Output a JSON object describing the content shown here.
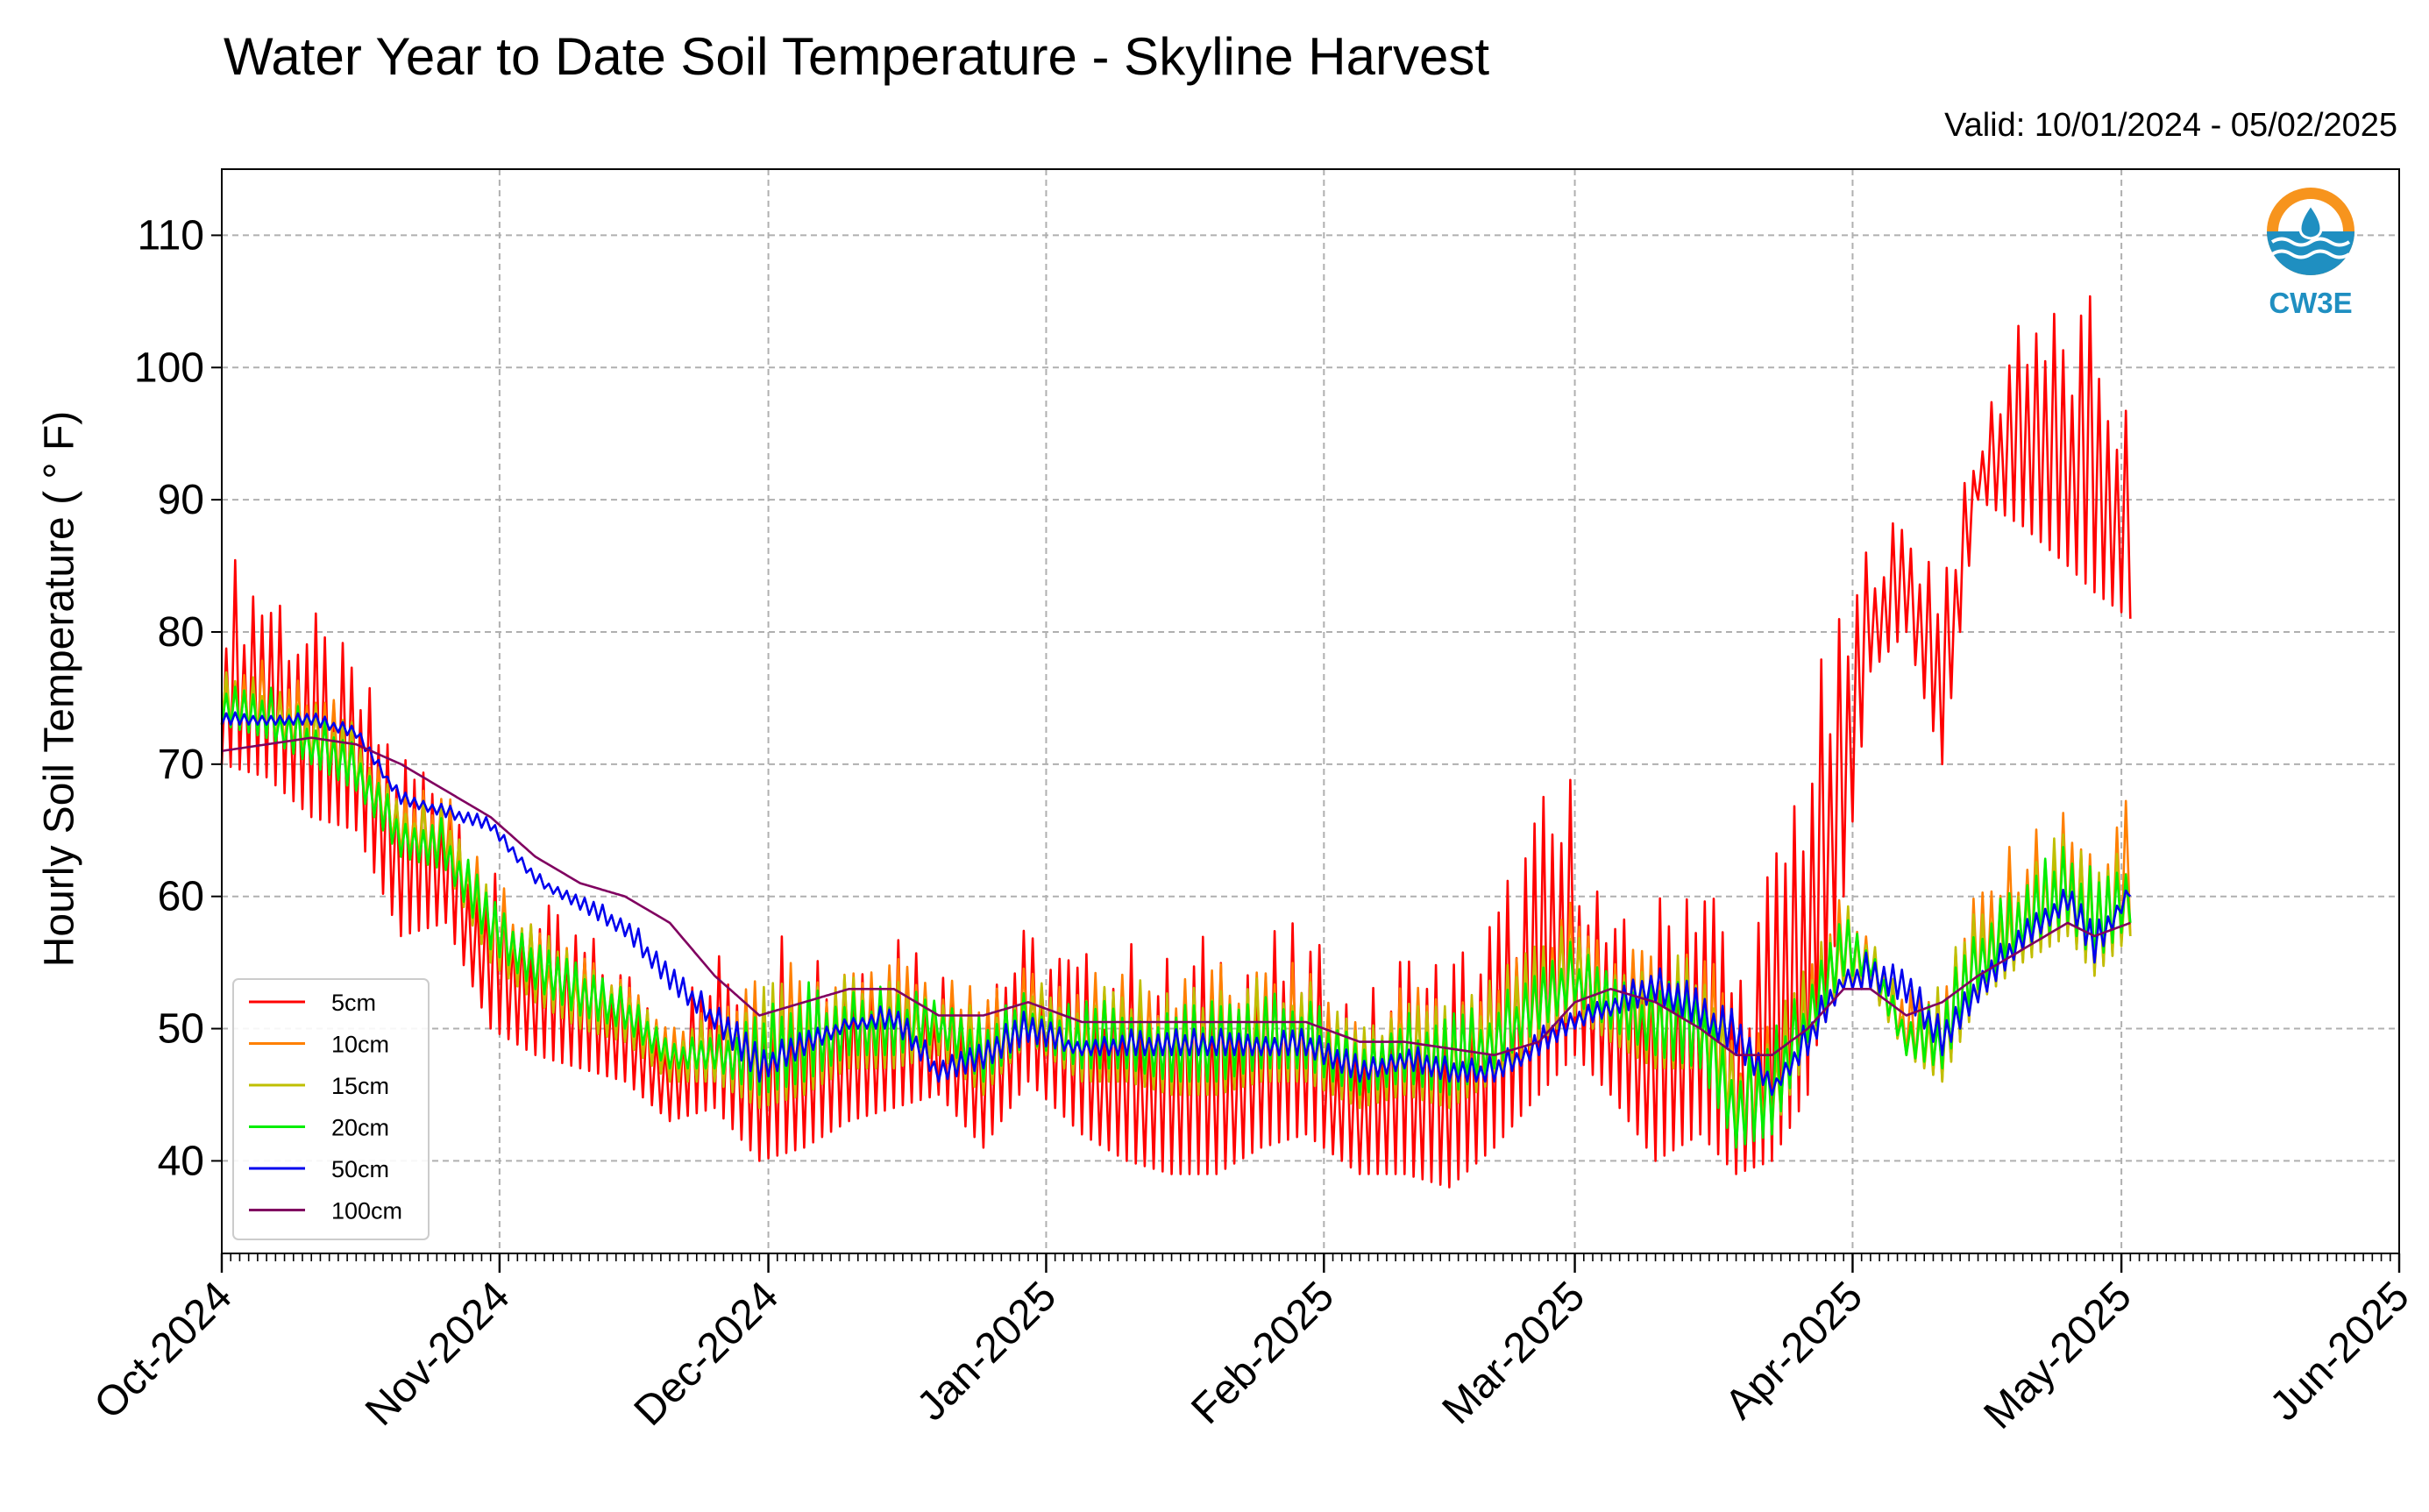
{
  "title": "Water Year to Date Soil Temperature - Skyline Harvest",
  "valid_text": "Valid: 10/01/2024 - 05/02/2025",
  "logo_text": "CW3E",
  "colors": {
    "5cm": "#ff0000",
    "10cm": "#ff8000",
    "15cm": "#bfbf00",
    "20cm": "#00ee00",
    "50cm": "#0000ee",
    "100cm": "#800060",
    "logo_orange": "#f7941d",
    "logo_blue": "#1f8fc1"
  },
  "chart_data": {
    "type": "line",
    "title": "Water Year to Date Soil Temperature - Skyline Harvest",
    "xlabel": "",
    "ylabel": "Hourly Soil Temperature ( ° F)",
    "ylim": [
      33,
      115
    ],
    "xlim": [
      "2024-10-01",
      "2025-06-01"
    ],
    "yticks": [
      40,
      50,
      60,
      70,
      80,
      90,
      100,
      110
    ],
    "xticks": [
      "Oct-2024",
      "Nov-2024",
      "Dec-2024",
      "Jan-2025",
      "Feb-2025",
      "Mar-2025",
      "Apr-2025",
      "May-2025",
      "Jun-2025"
    ],
    "grid": true,
    "legend_position": "lower-left",
    "series": [
      {
        "name": "5cm",
        "x": [
          "2024-10-01",
          "2024-10-06",
          "2024-10-11",
          "2024-10-16",
          "2024-10-21",
          "2024-10-26",
          "2024-10-31",
          "2024-11-05",
          "2024-11-10",
          "2024-11-15",
          "2024-11-20",
          "2024-11-25",
          "2024-11-30",
          "2024-12-05",
          "2024-12-10",
          "2024-12-15",
          "2024-12-20",
          "2024-12-25",
          "2024-12-30",
          "2025-01-05",
          "2025-01-10",
          "2025-01-15",
          "2025-01-20",
          "2025-01-25",
          "2025-01-30",
          "2025-02-05",
          "2025-02-10",
          "2025-02-15",
          "2025-02-20",
          "2025-02-25",
          "2025-03-01",
          "2025-03-05",
          "2025-03-10",
          "2025-03-15",
          "2025-03-19",
          "2025-03-23",
          "2025-03-27",
          "2025-03-31",
          "2025-04-03",
          "2025-04-07",
          "2025-04-11",
          "2025-04-15",
          "2025-04-20",
          "2025-04-25",
          "2025-04-28",
          "2025-05-02"
        ],
        "max": [
          86,
          86,
          82,
          78,
          72,
          71,
          62,
          60,
          58,
          55,
          52,
          56,
          58,
          59,
          56,
          60,
          55,
          56,
          58,
          56,
          57,
          56,
          58,
          58,
          58,
          52,
          57,
          56,
          60,
          68,
          70,
          58,
          60,
          67,
          55,
          64,
          76,
          82,
          88,
          89,
          87,
          94,
          108,
          104,
          106,
          97
        ],
        "min": [
          70,
          69,
          66,
          65,
          57,
          58,
          50,
          48,
          47,
          46,
          43,
          44,
          40,
          41,
          43,
          44,
          45,
          41,
          46,
          42,
          40,
          39,
          39,
          41,
          42,
          39,
          39,
          38,
          41,
          45,
          48,
          45,
          40,
          42,
          39,
          40,
          45,
          60,
          77,
          80,
          70,
          90,
          88,
          85,
          83,
          81
        ]
      },
      {
        "name": "10cm",
        "x": [
          "2024-10-01",
          "2024-10-06",
          "2024-10-11",
          "2024-10-16",
          "2024-10-21",
          "2024-10-26",
          "2024-10-31",
          "2024-11-05",
          "2024-11-10",
          "2024-11-15",
          "2024-11-20",
          "2024-11-25",
          "2024-11-30",
          "2024-12-05",
          "2024-12-10",
          "2024-12-15",
          "2024-12-20",
          "2024-12-25",
          "2024-12-30",
          "2025-01-05",
          "2025-01-10",
          "2025-01-15",
          "2025-01-20",
          "2025-01-25",
          "2025-01-30",
          "2025-02-05",
          "2025-02-10",
          "2025-02-15",
          "2025-02-20",
          "2025-02-25",
          "2025-03-01",
          "2025-03-05",
          "2025-03-10",
          "2025-03-15",
          "2025-03-19",
          "2025-03-23",
          "2025-03-27",
          "2025-03-31",
          "2025-04-03",
          "2025-04-07",
          "2025-04-11",
          "2025-04-15",
          "2025-04-20",
          "2025-04-25",
          "2025-04-28",
          "2025-05-02"
        ],
        "max": [
          78,
          78,
          76,
          74,
          68,
          68,
          62,
          58,
          56,
          54,
          50,
          52,
          54,
          56,
          55,
          56,
          54,
          53,
          55,
          54,
          55,
          54,
          55,
          55,
          55,
          51,
          54,
          53,
          55,
          58,
          60,
          56,
          56,
          58,
          50,
          52,
          56,
          61,
          58,
          53,
          55,
          61,
          65,
          67,
          64,
          68
        ],
        "min": [
          73,
          72,
          70,
          68,
          63,
          62,
          55,
          52,
          50,
          49,
          46,
          46,
          44,
          45,
          47,
          47,
          48,
          45,
          49,
          46,
          46,
          45,
          45,
          46,
          46,
          44,
          45,
          44,
          46,
          49,
          51,
          49,
          47,
          47,
          42,
          42,
          48,
          53,
          53,
          48,
          46,
          52,
          55,
          57,
          54,
          57
        ]
      },
      {
        "name": "15cm",
        "x": [
          "2024-10-01",
          "2024-10-06",
          "2024-10-11",
          "2024-10-16",
          "2024-10-21",
          "2024-10-26",
          "2024-10-31",
          "2024-11-05",
          "2024-11-10",
          "2024-11-15",
          "2024-11-20",
          "2024-11-25",
          "2024-11-30",
          "2024-12-05",
          "2024-12-10",
          "2024-12-15",
          "2024-12-20",
          "2024-12-25",
          "2024-12-30",
          "2025-01-05",
          "2025-01-10",
          "2025-01-15",
          "2025-01-20",
          "2025-01-25",
          "2025-01-30",
          "2025-02-05",
          "2025-02-10",
          "2025-02-15",
          "2025-02-20",
          "2025-02-25",
          "2025-03-01",
          "2025-03-05",
          "2025-03-10",
          "2025-03-15",
          "2025-03-19",
          "2025-03-23",
          "2025-03-27",
          "2025-03-31",
          "2025-04-03",
          "2025-04-07",
          "2025-04-11",
          "2025-04-15",
          "2025-04-20",
          "2025-04-25",
          "2025-04-28",
          "2025-05-02"
        ],
        "max": [
          77,
          77,
          75,
          73,
          67,
          67,
          61,
          58,
          56,
          54,
          50,
          51,
          53,
          55,
          54,
          55,
          53,
          52,
          54,
          53,
          54,
          53,
          54,
          54,
          54,
          50,
          53,
          52,
          54,
          57,
          59,
          55,
          55,
          57,
          49,
          51,
          55,
          60,
          57,
          52,
          54,
          60,
          63,
          66,
          63,
          66
        ],
        "min": [
          73,
          72,
          70,
          68,
          63,
          62,
          55,
          52,
          50,
          49,
          46,
          46,
          44,
          45,
          47,
          47,
          48,
          45,
          49,
          46,
          46,
          45,
          45,
          46,
          46,
          44,
          45,
          44,
          46,
          49,
          51,
          49,
          47,
          47,
          42,
          42,
          48,
          53,
          53,
          48,
          46,
          52,
          55,
          57,
          54,
          57
        ]
      },
      {
        "name": "20cm",
        "x": [
          "2024-10-01",
          "2024-10-06",
          "2024-10-11",
          "2024-10-16",
          "2024-10-21",
          "2024-10-26",
          "2024-10-31",
          "2024-11-05",
          "2024-11-10",
          "2024-11-15",
          "2024-11-20",
          "2024-11-25",
          "2024-11-30",
          "2024-12-05",
          "2024-12-10",
          "2024-12-15",
          "2024-12-20",
          "2024-12-25",
          "2024-12-30",
          "2025-01-05",
          "2025-01-10",
          "2025-01-15",
          "2025-01-20",
          "2025-01-25",
          "2025-01-30",
          "2025-02-05",
          "2025-02-10",
          "2025-02-15",
          "2025-02-20",
          "2025-02-25",
          "2025-03-01",
          "2025-03-05",
          "2025-03-10",
          "2025-03-15",
          "2025-03-19",
          "2025-03-23",
          "2025-03-27",
          "2025-03-31",
          "2025-04-03",
          "2025-04-07",
          "2025-04-11",
          "2025-04-15",
          "2025-04-20",
          "2025-04-25",
          "2025-04-28",
          "2025-05-02"
        ],
        "max": [
          76,
          76,
          74,
          72,
          66,
          66,
          60,
          57,
          55,
          53,
          49,
          50,
          52,
          54,
          53,
          54,
          52,
          51,
          53,
          52,
          53,
          52,
          53,
          53,
          53,
          49,
          52,
          51,
          53,
          55,
          57,
          54,
          54,
          55,
          48,
          50,
          54,
          59,
          56,
          51,
          53,
          58,
          62,
          64,
          62,
          64
        ],
        "min": [
          73,
          72,
          70,
          68,
          63,
          62,
          56,
          53,
          51,
          50,
          47,
          47,
          45,
          46,
          48,
          48,
          49,
          46,
          49,
          47,
          47,
          46,
          46,
          47,
          47,
          45,
          46,
          45,
          47,
          50,
          52,
          50,
          48,
          47,
          41,
          42,
          49,
          54,
          54,
          48,
          47,
          53,
          56,
          58,
          55,
          58
        ]
      },
      {
        "name": "50cm",
        "x": [
          "2024-10-01",
          "2024-10-06",
          "2024-10-11",
          "2024-10-16",
          "2024-10-21",
          "2024-10-26",
          "2024-10-31",
          "2024-11-05",
          "2024-11-10",
          "2024-11-15",
          "2024-11-20",
          "2024-11-25",
          "2024-11-30",
          "2024-12-05",
          "2024-12-10",
          "2024-12-15",
          "2024-12-20",
          "2024-12-25",
          "2024-12-30",
          "2025-01-05",
          "2025-01-10",
          "2025-01-15",
          "2025-01-20",
          "2025-01-25",
          "2025-01-30",
          "2025-02-05",
          "2025-02-10",
          "2025-02-15",
          "2025-02-20",
          "2025-02-25",
          "2025-03-01",
          "2025-03-05",
          "2025-03-10",
          "2025-03-15",
          "2025-03-19",
          "2025-03-23",
          "2025-03-27",
          "2025-03-31",
          "2025-04-03",
          "2025-04-07",
          "2025-04-11",
          "2025-04-15",
          "2025-04-20",
          "2025-04-25",
          "2025-04-28",
          "2025-05-02"
        ],
        "max": [
          74,
          74,
          74,
          73,
          68,
          67,
          66,
          62,
          60,
          59,
          55,
          52,
          49,
          50,
          51,
          52,
          48,
          49,
          52,
          49,
          50,
          50,
          50,
          50,
          50,
          48,
          49,
          48,
          48,
          50,
          52,
          53,
          55,
          53,
          52,
          46,
          51,
          55,
          56,
          55,
          51,
          55,
          58,
          61,
          58,
          61
        ],
        "min": [
          73,
          73,
          73,
          72,
          67,
          66,
          65,
          61,
          59,
          57,
          53,
          50,
          46,
          48,
          50,
          50,
          46,
          47,
          49,
          48,
          48,
          48,
          48,
          48,
          48,
          46,
          47,
          46,
          46,
          48,
          50,
          51,
          52,
          50,
          48,
          45,
          48,
          53,
          53,
          52,
          48,
          52,
          56,
          59,
          55,
          60
        ]
      },
      {
        "name": "100cm",
        "x": [
          "2024-10-01",
          "2024-10-06",
          "2024-10-11",
          "2024-10-16",
          "2024-10-21",
          "2024-10-26",
          "2024-10-31",
          "2024-11-05",
          "2024-11-10",
          "2024-11-15",
          "2024-11-20",
          "2024-11-25",
          "2024-11-30",
          "2024-12-05",
          "2024-12-10",
          "2024-12-15",
          "2024-12-20",
          "2024-12-25",
          "2024-12-30",
          "2025-01-05",
          "2025-01-10",
          "2025-01-15",
          "2025-01-20",
          "2025-01-25",
          "2025-01-30",
          "2025-02-05",
          "2025-02-10",
          "2025-02-15",
          "2025-02-20",
          "2025-02-25",
          "2025-03-01",
          "2025-03-05",
          "2025-03-10",
          "2025-03-15",
          "2025-03-19",
          "2025-03-23",
          "2025-03-27",
          "2025-03-31",
          "2025-04-03",
          "2025-04-07",
          "2025-04-11",
          "2025-04-15",
          "2025-04-20",
          "2025-04-25",
          "2025-04-28",
          "2025-05-02"
        ],
        "max": [
          71,
          71.5,
          72,
          71.5,
          70,
          68,
          66,
          63,
          61,
          60,
          58,
          54,
          51,
          52,
          53,
          53,
          51,
          51,
          52,
          50.5,
          50.5,
          50.5,
          50.5,
          50.5,
          50.5,
          49,
          49,
          48.5,
          48,
          49,
          52,
          53,
          52,
          50,
          48,
          48,
          50,
          53,
          53,
          51,
          52,
          54,
          56,
          58,
          57,
          58
        ],
        "min": [
          71,
          71.5,
          72,
          71.5,
          70,
          68,
          66,
          63,
          61,
          60,
          58,
          54,
          51,
          52,
          53,
          53,
          51,
          51,
          52,
          50.5,
          50.5,
          50.5,
          50.5,
          50.5,
          50.5,
          49,
          49,
          48.5,
          48,
          49,
          52,
          53,
          52,
          50,
          48,
          48,
          50,
          53,
          53,
          51,
          52,
          54,
          56,
          58,
          57,
          58
        ]
      }
    ]
  }
}
